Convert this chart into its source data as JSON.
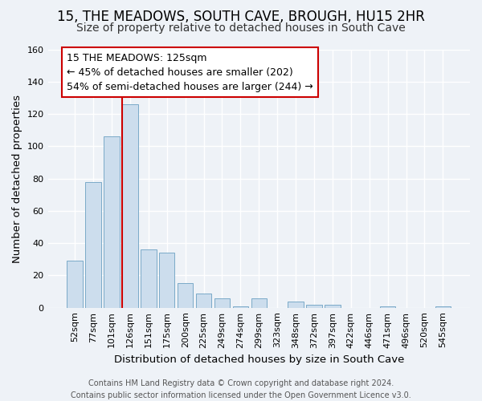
{
  "title": "15, THE MEADOWS, SOUTH CAVE, BROUGH, HU15 2HR",
  "subtitle": "Size of property relative to detached houses in South Cave",
  "xlabel": "Distribution of detached houses by size in South Cave",
  "ylabel": "Number of detached properties",
  "bar_color": "#ccdded",
  "bar_edge_color": "#7aaac8",
  "background_color": "#eef2f7",
  "grid_color": "#ffffff",
  "categories": [
    "52sqm",
    "77sqm",
    "101sqm",
    "126sqm",
    "151sqm",
    "175sqm",
    "200sqm",
    "225sqm",
    "249sqm",
    "274sqm",
    "299sqm",
    "323sqm",
    "348sqm",
    "372sqm",
    "397sqm",
    "422sqm",
    "446sqm",
    "471sqm",
    "496sqm",
    "520sqm",
    "545sqm"
  ],
  "values": [
    29,
    78,
    106,
    126,
    36,
    34,
    15,
    9,
    6,
    1,
    6,
    0,
    4,
    2,
    2,
    0,
    0,
    1,
    0,
    0,
    1
  ],
  "ylim": [
    0,
    160
  ],
  "yticks": [
    0,
    20,
    40,
    60,
    80,
    100,
    120,
    140,
    160
  ],
  "marker_idx": 3,
  "annotation_title": "15 THE MEADOWS: 125sqm",
  "annotation_line1": "← 45% of detached houses are smaller (202)",
  "annotation_line2": "54% of semi-detached houses are larger (244) →",
  "annotation_box_color": "white",
  "annotation_border_color": "#cc0000",
  "marker_line_color": "#cc0000",
  "footer_line1": "Contains HM Land Registry data © Crown copyright and database right 2024.",
  "footer_line2": "Contains public sector information licensed under the Open Government Licence v3.0.",
  "title_fontsize": 12,
  "subtitle_fontsize": 10,
  "axis_label_fontsize": 9.5,
  "tick_fontsize": 8,
  "annotation_fontsize": 9,
  "footer_fontsize": 7
}
